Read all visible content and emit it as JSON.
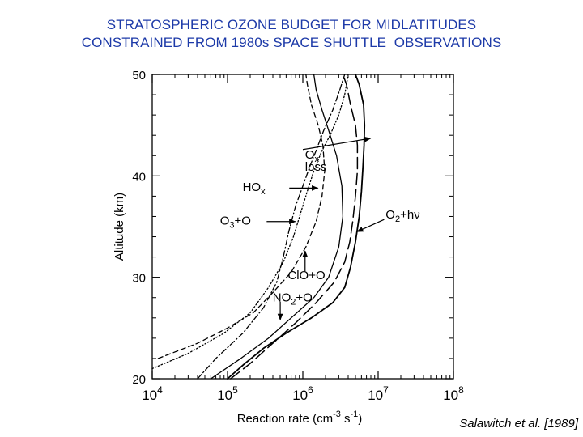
{
  "title": {
    "line1": "STRATOSPHERIC OZONE BUDGET FOR MIDLATITUDES",
    "line2": "CONSTRAINED FROM 1980s SPACE SHUTTLE  OBSERVATIONS"
  },
  "citation": "Salawitch et al. [1989]",
  "colors": {
    "title": "#1d3aa8",
    "ink": "#000000"
  },
  "chart_data": {
    "type": "line",
    "xscale": "log",
    "xlabel": {
      "base": "Reaction rate (cm",
      "sup1": "-3",
      "mid": " s",
      "sup2": "-1",
      "end": ")"
    },
    "ylabel": "Altitude (km)",
    "xlim": [
      10000,
      100000000
    ],
    "ylim": [
      20,
      50
    ],
    "xticks": [
      {
        "value": 10000,
        "base": "10",
        "exp": "4"
      },
      {
        "value": 100000,
        "base": "10",
        "exp": "5"
      },
      {
        "value": 1000000,
        "base": "10",
        "exp": "6"
      },
      {
        "value": 10000000,
        "base": "10",
        "exp": "7"
      },
      {
        "value": 100000000,
        "base": "10",
        "exp": "8"
      }
    ],
    "yticks": [
      20,
      30,
      40,
      50
    ],
    "series": [
      {
        "name": "Ox loss",
        "style": "solid",
        "x": [
          100000,
          170000,
          300000,
          600000,
          1300000,
          2500000,
          3600000,
          4300000,
          5000000,
          5600000,
          6000000,
          6300000,
          6500000,
          6600000,
          6400000,
          5600000,
          5000000
        ],
        "y": [
          20,
          21.5,
          23,
          24.5,
          26,
          27.5,
          29,
          31,
          33.5,
          36,
          38.5,
          41,
          43,
          45,
          47,
          49,
          50
        ]
      },
      {
        "name": "O2+hν",
        "style": "longdash",
        "x": [
          110000,
          200000,
          400000,
          800000,
          1500000,
          2600000,
          3600000,
          4200000,
          4600000,
          5000000,
          5300000,
          5300000,
          5000000,
          4300000,
          3800000,
          3400000
        ],
        "y": [
          20,
          21.5,
          23.5,
          25.5,
          27.5,
          29.5,
          31.5,
          33.5,
          35.5,
          38,
          40.5,
          43,
          45,
          47,
          49,
          50
        ]
      },
      {
        "name": "HOx",
        "style": "dashdot",
        "x": [
          40000,
          70000,
          160000,
          300000,
          450000,
          550000,
          650000,
          800000,
          1000000,
          1250000,
          1500000,
          1900000,
          2500000,
          3100000,
          3600000
        ],
        "y": [
          20,
          22,
          24.5,
          27,
          29.5,
          32,
          34.5,
          37,
          39,
          41,
          42.5,
          44.5,
          46.5,
          48.5,
          50
        ]
      },
      {
        "name": "O3+O",
        "style": "dotted",
        "x": [
          10000,
          30000,
          90000,
          200000,
          350000,
          550000,
          750000,
          950000,
          1150000,
          1400000,
          1800000,
          2300000,
          3000000,
          3600000,
          4000000
        ],
        "y": [
          21,
          22.5,
          24.5,
          26.5,
          29,
          31.5,
          34,
          36.5,
          38.5,
          40.5,
          42.5,
          44,
          46,
          48,
          50
        ]
      },
      {
        "name": "ClO+O",
        "style": "shortdash",
        "x": [
          12000,
          40000,
          100000,
          220000,
          400000,
          700000,
          1100000,
          1500000,
          1800000,
          1950000,
          1850000,
          1600000,
          1300000,
          1150000,
          1100000
        ],
        "y": [
          22,
          23.5,
          25,
          26.5,
          28.5,
          30.5,
          33,
          35.5,
          38,
          40.5,
          43,
          45,
          47,
          49,
          50
        ]
      },
      {
        "name": "NO2+O",
        "style": "solidthin",
        "x": [
          60000,
          150000,
          350000,
          700000,
          1400000,
          2200000,
          3000000,
          3400000,
          3300000,
          2800000,
          2200000,
          1800000,
          1500000,
          1400000
        ],
        "y": [
          20,
          22,
          24,
          26,
          28,
          30,
          33,
          36,
          39,
          42,
          44.5,
          46.5,
          48.5,
          50
        ]
      }
    ],
    "annotations": [
      {
        "key": "ox_loss",
        "lines": [
          {
            "base": "O",
            "sub": "x",
            "sup": ""
          },
          {
            "base": "loss",
            "sub": "",
            "sup": ""
          }
        ],
        "text_at": [
          6.03,
          41.7
        ],
        "anchor": "start",
        "arrow_from": [
          6.0,
          42.6
        ],
        "arrow_to": [
          6.9,
          43.7
        ]
      },
      {
        "key": "o2hv",
        "lines": [
          {
            "base": "O",
            "sub": "2",
            "sup": "",
            "tail": "+hν"
          }
        ],
        "text_at": [
          7.1,
          35.8
        ],
        "anchor": "start",
        "arrow_from": [
          7.08,
          35.7
        ],
        "arrow_to": [
          6.72,
          34.5
        ]
      },
      {
        "key": "hox",
        "lines": [
          {
            "base": "HO",
            "sub": "x",
            "sup": ""
          }
        ],
        "text_at": [
          5.2,
          38.5
        ],
        "anchor": "start",
        "arrow_from": [
          5.82,
          38.8
        ],
        "arrow_to": [
          6.2,
          38.8
        ]
      },
      {
        "key": "o3o",
        "lines": [
          {
            "base": "O",
            "sub": "3",
            "sup": "",
            "tail": "+O"
          }
        ],
        "text_at": [
          4.9,
          35.2
        ],
        "anchor": "start",
        "arrow_from": [
          5.52,
          35.5
        ],
        "arrow_to": [
          5.9,
          35.5
        ]
      },
      {
        "key": "cloo",
        "lines": [
          {
            "base": "ClO+O",
            "sub": "",
            "sup": ""
          }
        ],
        "text_at": [
          5.8,
          29.8
        ],
        "anchor": "start",
        "arrow_from": [
          6.03,
          30.6
        ],
        "arrow_to": [
          6.03,
          32.6
        ]
      },
      {
        "key": "no2o",
        "lines": [
          {
            "base": "NO",
            "sub": "2",
            "sup": "",
            "tail": "+O"
          }
        ],
        "text_at": [
          5.6,
          27.6
        ],
        "anchor": "start",
        "arrow_from": [
          5.7,
          27.6
        ],
        "arrow_to": [
          5.7,
          25.8
        ]
      }
    ]
  }
}
